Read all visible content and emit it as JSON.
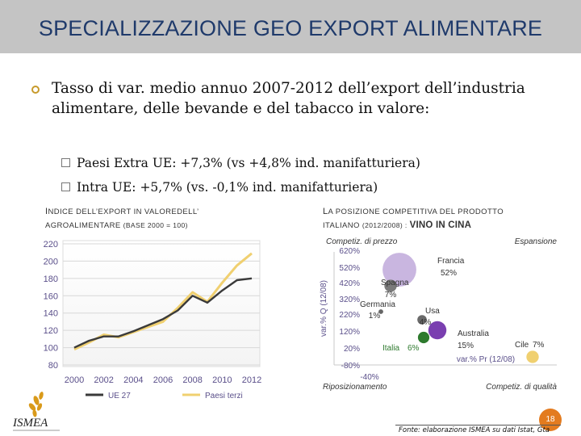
{
  "slide": {
    "title": "SPECIALIZZAZIONE GEO EXPORT ALIMENTARE",
    "bullet": "Tasso di var. medio annuo 2007-2012 dell’export dell’industria alimentare, delle bevande e del tabacco in valore:",
    "sub_bullets": [
      "Paesi Extra UE: +7,3% (vs +4,8% ind. manifatturiera)",
      "Intra UE: +5,7% (vs. -0,1% ind. manifatturiera)"
    ],
    "page_number": "18",
    "source": "Fonte: elaborazione ISMEA su dati Istat, Gta",
    "logo_text": "ISMEA"
  },
  "left_chart_title": {
    "part1_first": "I",
    "part1_rest": "NDICE DELL’EXPORT IN VALORE",
    "part1_tail": "DELL’",
    "part2": "AGROALIMENTARE",
    "part3": "(BASE 2000 = 100)"
  },
  "right_chart_title": {
    "part1_first": "L",
    "part1_rest": "A POSIZIONE COMPETITIVA DEL PRODOTTO",
    "part2": "ITALIANO",
    "part3": "(2012/2008) :",
    "highlight": "VINO IN CINA"
  },
  "colors": {
    "title_text": "#1f3a6b",
    "title_bar": "#c4c4c4",
    "series_ue": "#3a3a3a",
    "series_terzi": "#f0d070",
    "axis_text": "#5a4f8a",
    "accent_orange": "#e37b1f"
  },
  "chart_data": [
    {
      "type": "line",
      "title": "",
      "x": [
        2000,
        2001,
        2002,
        2003,
        2004,
        2005,
        2006,
        2007,
        2008,
        2009,
        2010,
        2011,
        2012
      ],
      "ylim": [
        80,
        220
      ],
      "yticks": [
        80,
        100,
        120,
        140,
        160,
        180,
        200,
        220
      ],
      "xticks": [
        2000,
        2002,
        2004,
        2006,
        2008,
        2010,
        2012
      ],
      "legend_position": "bottom",
      "series": [
        {
          "name": "UE 27",
          "color": "#3a3a3a",
          "values": [
            100,
            108,
            113,
            113,
            119,
            126,
            133,
            143,
            160,
            152,
            166,
            178,
            180
          ]
        },
        {
          "name": "Paesi terzi",
          "color": "#f0d070",
          "values": [
            98,
            106,
            115,
            112,
            118,
            124,
            130,
            146,
            164,
            153,
            175,
            195,
            209
          ]
        }
      ]
    },
    {
      "type": "scatter",
      "title": "",
      "xlabel": "var.% Pr (12/08)",
      "ylabel": "var.% Q (12/08)",
      "y_tick_labels": [
        "620%",
        "520%",
        "420%",
        "320%",
        "220%",
        "120%",
        "20%",
        "-80%"
      ],
      "x_tick_labels": [
        "-40%"
      ],
      "quadrants": [
        "Competiz. di prezzo",
        "Espansione",
        "Riposizionamento",
        "Competiz. di qualità"
      ],
      "points": [
        {
          "label": "Francia",
          "value_label": "52%",
          "share": 52
        },
        {
          "label": "Spagna",
          "value_label": "7%",
          "share": 7
        },
        {
          "label": "Germania",
          "value_label": "1%",
          "share": 1
        },
        {
          "label": "Usa",
          "value_label": "4%",
          "share": 4
        },
        {
          "label": "Australia",
          "value_label": "15%",
          "share": 15
        },
        {
          "label": "Italia",
          "value_label": "6%",
          "share": 6
        },
        {
          "label": "Cile",
          "value_label": "7%",
          "share": 7
        }
      ]
    }
  ]
}
